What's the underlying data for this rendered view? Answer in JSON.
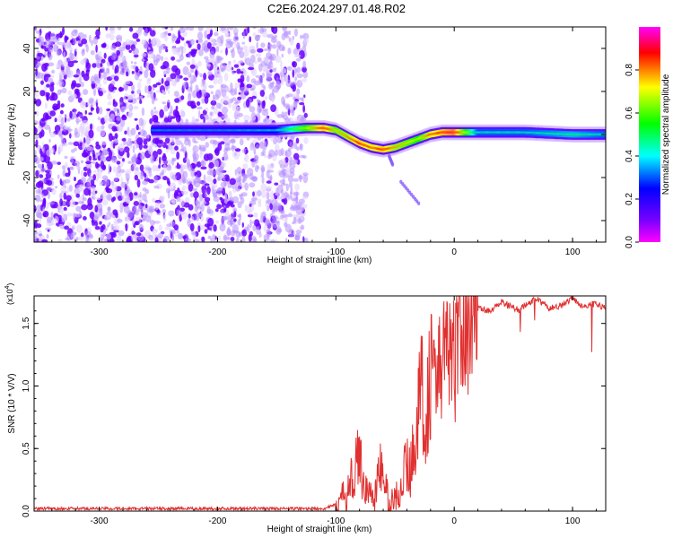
{
  "title": "C2E6.2024.297.01.48.R02",
  "chart_data": [
    {
      "type": "heatmap",
      "ylabel": "Frequency (Hz)",
      "xlabel": "Height of straight line (km)",
      "xlim": [
        -355,
        128
      ],
      "ylim": [
        -50,
        50
      ],
      "x_ticks": [
        -300,
        -200,
        -100,
        0,
        100
      ],
      "y_ticks": [
        -40,
        -20,
        0,
        20,
        40
      ],
      "colorbar": {
        "label": "Normalized spectral amplitude",
        "range": [
          0,
          1
        ],
        "ticks": [
          "0.0",
          "0.2",
          "0.4",
          "0.6",
          "0.8"
        ],
        "colors": [
          "#ff00ff",
          "#7a00ff",
          "#0000ff",
          "#00ffff",
          "#00ff00",
          "#ffff00",
          "#ff0000",
          "#ff00ff"
        ]
      },
      "noise_region_x": [
        -355,
        -125
      ],
      "ridge": {
        "x": [
          -255,
          -200,
          -150,
          -125,
          -110,
          -100,
          -90,
          -80,
          -70,
          -60,
          -50,
          -40,
          -30,
          -20,
          -10,
          0,
          20,
          60,
          100,
          128
        ],
        "y": [
          2,
          2,
          2,
          3,
          3,
          2,
          -1,
          -4,
          -6,
          -7,
          -6,
          -4,
          -2,
          0,
          1,
          1,
          1,
          1,
          0,
          0
        ],
        "amplitude": [
          0.35,
          0.35,
          0.4,
          0.7,
          0.9,
          0.75,
          0.8,
          0.9,
          0.85,
          0.9,
          0.8,
          0.75,
          0.7,
          0.85,
          0.9,
          0.95,
          0.45,
          0.45,
          0.5,
          0.45
        ]
      },
      "tails": [
        {
          "x": [
            -55,
            -52
          ],
          "y": [
            -10,
            -14
          ]
        },
        {
          "x": [
            -45,
            -30
          ],
          "y": [
            -22,
            -32
          ]
        }
      ]
    },
    {
      "type": "line",
      "ylabel": "SNR (10 * V/V)",
      "xlabel": "Height of straight line (km)",
      "y_multiplier": "(x10",
      "y_multiplier_exp": "4",
      "y_multiplier_close": ")",
      "xlim": [
        -355,
        128
      ],
      "ylim": [
        0,
        1.72
      ],
      "x_ticks": [
        -300,
        -200,
        -100,
        0,
        100
      ],
      "y_tick_labels": [
        "0.0",
        "0.5",
        "1.0",
        "1.5"
      ],
      "y_ticks": [
        0,
        0.5,
        1.0,
        1.5
      ],
      "color": "#e03030",
      "series": [
        {
          "x": [
            -355,
            -300,
            -200,
            -150,
            -110,
            -100,
            -90,
            -85,
            -80,
            -77,
            -73,
            -68,
            -62,
            -58,
            -55,
            -50,
            -45,
            -40,
            -37,
            -34,
            -30,
            -27,
            -25,
            -20,
            -17,
            -14,
            -10,
            -7,
            -3,
            0,
            5,
            10,
            20,
            30,
            40,
            50,
            55,
            60,
            70,
            80,
            90,
            100,
            110,
            120,
            128
          ],
          "y": [
            0.02,
            0.02,
            0.02,
            0.02,
            0.02,
            0.05,
            0.15,
            0.3,
            0.45,
            0.25,
            0.15,
            0.1,
            0.35,
            0.2,
            0.05,
            0.1,
            0.2,
            0.4,
            0.3,
            0.6,
            0.8,
            1.0,
            0.7,
            1.1,
            1.3,
            0.9,
            1.3,
            1.4,
            1.1,
            1.2,
            1.5,
            1.45,
            1.62,
            1.6,
            1.67,
            1.63,
            1.6,
            1.65,
            1.7,
            1.62,
            1.64,
            1.7,
            1.63,
            1.66,
            1.62
          ]
        }
      ]
    }
  ]
}
